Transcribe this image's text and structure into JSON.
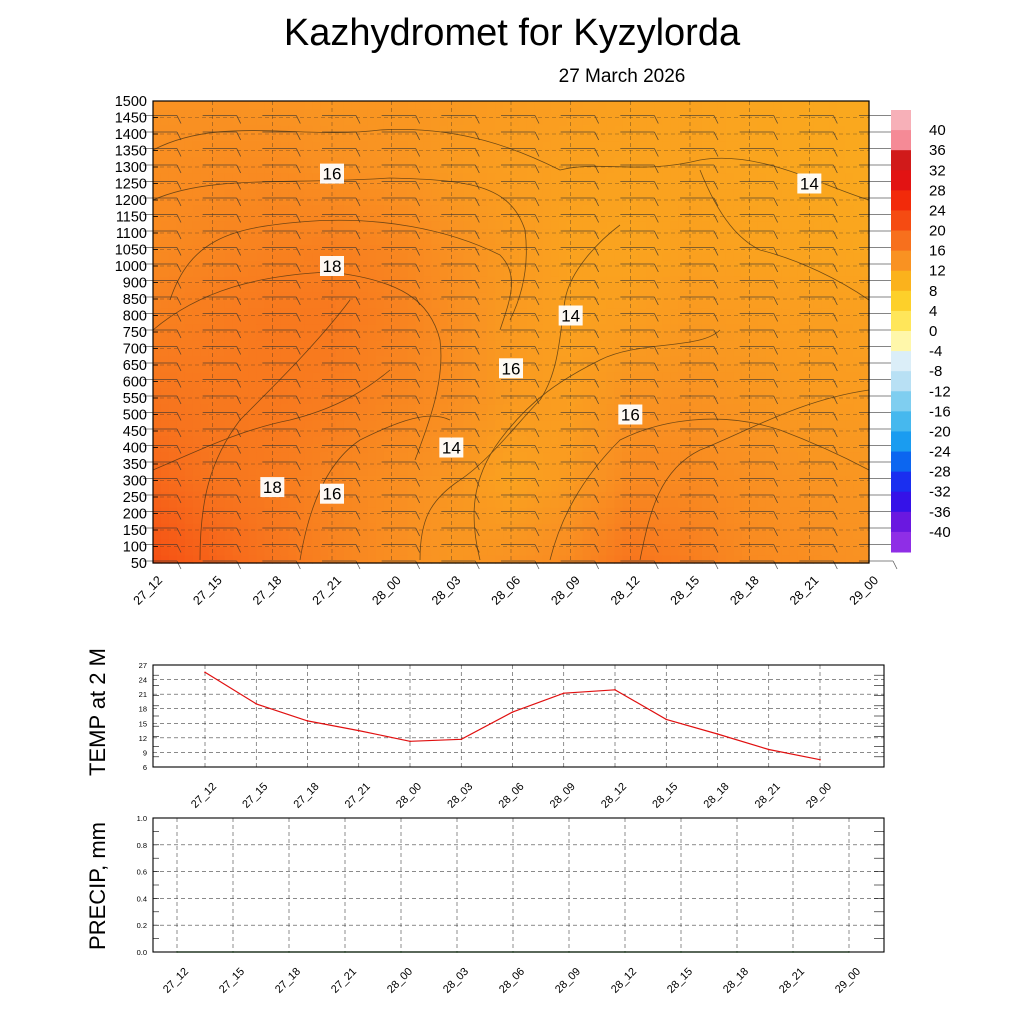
{
  "title": "Kazhydromet  for Kyzylorda",
  "subtitle": "27 March 2026",
  "time_labels": [
    "27_12",
    "27_15",
    "27_18",
    "27_21",
    "28_00",
    "28_03",
    "28_06",
    "28_09",
    "28_12",
    "28_15",
    "28_18",
    "28_21",
    "29_00"
  ],
  "chart_data": [
    {
      "type": "heatmap",
      "name": "vertical-temperature-cross-section",
      "title": "Kazhydromet  for Kyzylorda",
      "subtitle": "27 March 2026",
      "x": [
        "27_12",
        "27_15",
        "27_18",
        "27_21",
        "28_00",
        "28_03",
        "28_06",
        "28_09",
        "28_12",
        "28_15",
        "28_18",
        "28_21",
        "29_00"
      ],
      "y_levels": [
        50,
        100,
        150,
        200,
        250,
        300,
        350,
        400,
        450,
        500,
        550,
        600,
        650,
        700,
        750,
        800,
        850,
        900,
        1000,
        1050,
        1100,
        1150,
        1200,
        1250,
        1300,
        1350,
        1400,
        1450,
        1500
      ],
      "y_rows_for_grid": [
        50,
        300,
        550,
        800,
        1050,
        1300,
        1500
      ],
      "temperature_grid": [
        [
          23.5,
          21.5,
          19.5,
          17.8,
          16.5,
          15.5,
          16.0,
          17.0,
          19.5,
          18.5,
          17.0,
          16.5,
          16.0
        ],
        [
          21.0,
          19.5,
          18.7,
          17.5,
          16.5,
          15.5,
          14.0,
          15.0,
          17.0,
          17.0,
          16.3,
          15.8,
          15.5
        ],
        [
          19.5,
          19.0,
          19.0,
          18.5,
          17.5,
          16.5,
          15.0,
          14.5,
          15.8,
          16.0,
          15.5,
          15.0,
          14.8
        ],
        [
          18.0,
          18.5,
          19.0,
          19.0,
          18.0,
          16.5,
          15.0,
          14.2,
          14.5,
          15.0,
          14.8,
          14.5,
          14.3
        ],
        [
          17.0,
          17.5,
          18.0,
          18.2,
          17.5,
          16.2,
          15.0,
          14.0,
          13.8,
          14.2,
          14.0,
          13.8,
          13.5
        ],
        [
          16.5,
          16.7,
          16.8,
          16.2,
          15.8,
          15.0,
          14.5,
          14.2,
          14.0,
          14.0,
          13.7,
          13.5,
          13.2
        ],
        [
          16.0,
          16.0,
          15.8,
          15.5,
          15.5,
          15.2,
          14.8,
          14.5,
          14.2,
          14.0,
          13.7,
          13.4,
          13.2
        ]
      ],
      "colorbar": {
        "labels": [
          "40",
          "36",
          "32",
          "28",
          "24",
          "20",
          "16",
          "12",
          "8",
          "4",
          "0",
          "-4",
          "-8",
          "-12",
          "-16",
          "-20",
          "-24",
          "-28",
          "-32",
          "-36",
          "-40"
        ],
        "colors": [
          "#f7b0b8",
          "#f58a96",
          "#d11a1a",
          "#e21313",
          "#f22a0a",
          "#f54b12",
          "#f7701d",
          "#f99222",
          "#fbb21c",
          "#fdd02a",
          "#ffe65a",
          "#fff7aa",
          "#dbeef8",
          "#b8e0f4",
          "#7fcef0",
          "#46b8ee",
          "#1a9cf0",
          "#0c66f0",
          "#1a2ff0",
          "#3512e8",
          "#6a18e0",
          "#8f2ee6"
        ]
      },
      "contour_labels": [
        {
          "text": "16",
          "x": "27_21",
          "y": 1280
        },
        {
          "text": "18",
          "x": "27_21",
          "y": 1000
        },
        {
          "text": "14",
          "x": "28_21",
          "y": 1250
        },
        {
          "text": "14",
          "x": "28_09",
          "y": 800
        },
        {
          "text": "16",
          "x": "28_06",
          "y": 640
        },
        {
          "text": "16",
          "x": "28_12",
          "y": 500
        },
        {
          "text": "14",
          "x": "28_03",
          "y": 400
        },
        {
          "text": "18",
          "x": "27_18",
          "y": 280
        },
        {
          "text": "16",
          "x": "27_21",
          "y": 260
        }
      ]
    },
    {
      "type": "line",
      "name": "temp-2m",
      "ylabel": "TEMP at 2 M",
      "x": [
        "27_12",
        "27_15",
        "27_18",
        "27_21",
        "28_00",
        "28_03",
        "28_06",
        "28_09",
        "28_12",
        "28_15",
        "28_18",
        "28_21",
        "29_00"
      ],
      "values": [
        25.5,
        19.0,
        15.5,
        13.5,
        11.3,
        11.7,
        17.3,
        21.2,
        21.9,
        15.8,
        12.8,
        9.6,
        7.5
      ],
      "ylim": [
        6,
        27
      ],
      "yticks": [
        "6",
        "9",
        "12",
        "15",
        "18",
        "21",
        "24",
        "27"
      ],
      "line_color": "#e01010"
    },
    {
      "type": "line",
      "name": "precip",
      "ylabel": "PRECIP, mm",
      "x": [
        "27_12",
        "27_15",
        "27_18",
        "27_21",
        "28_00",
        "28_03",
        "28_06",
        "28_09",
        "28_12",
        "28_15",
        "28_18",
        "28_21",
        "29_00"
      ],
      "values": [
        0,
        0,
        0,
        0,
        0,
        0,
        0,
        0,
        0,
        0,
        0,
        0,
        0
      ],
      "ylim": [
        0,
        1
      ],
      "yticks": [
        "0.0",
        "0.2",
        "0.4",
        "0.6",
        "0.8",
        "1.0"
      ],
      "line_color": "#2aa02a"
    }
  ]
}
